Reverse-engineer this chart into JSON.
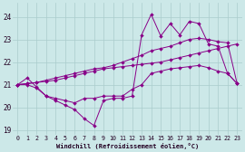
{
  "xlabel": "Windchill (Refroidissement éolien,°C)",
  "bg_color": "#cce8e8",
  "line_color": "#880088",
  "grid_color": "#aacccc",
  "xlim": [
    -0.5,
    23.5
  ],
  "ylim": [
    18.8,
    24.6
  ],
  "yticks": [
    19,
    20,
    21,
    22,
    23,
    24
  ],
  "xticks": [
    0,
    1,
    2,
    3,
    4,
    5,
    6,
    7,
    8,
    9,
    10,
    11,
    12,
    13,
    14,
    15,
    16,
    17,
    18,
    19,
    20,
    21,
    22,
    23
  ],
  "series": [
    {
      "x": [
        0,
        1,
        2,
        3,
        4,
        5,
        6,
        7,
        8,
        9,
        10,
        11,
        12,
        13,
        14,
        15,
        16,
        17,
        18,
        19,
        20,
        21,
        22,
        23
      ],
      "y": [
        21.0,
        21.05,
        21.1,
        21.15,
        21.2,
        21.3,
        21.4,
        21.5,
        21.6,
        21.7,
        21.75,
        21.8,
        21.85,
        21.9,
        21.95,
        22.0,
        22.1,
        22.2,
        22.3,
        22.4,
        22.5,
        22.6,
        22.7,
        22.8
      ]
    },
    {
      "x": [
        0,
        1,
        2,
        3,
        4,
        5,
        6,
        7,
        8,
        9,
        10,
        11,
        12,
        13,
        14,
        15,
        16,
        17,
        18,
        19,
        20,
        21,
        22,
        23
      ],
      "y": [
        21.0,
        21.05,
        21.1,
        21.2,
        21.3,
        21.4,
        21.5,
        21.6,
        21.7,
        21.75,
        21.85,
        22.0,
        22.15,
        22.3,
        22.5,
        22.6,
        22.7,
        22.85,
        23.0,
        23.05,
        23.0,
        22.9,
        22.85,
        21.05
      ]
    },
    {
      "x": [
        0,
        1,
        2,
        3,
        4,
        5,
        6,
        7,
        8,
        9,
        10,
        11,
        12,
        13,
        14,
        15,
        16,
        17,
        18,
        19,
        20,
        21,
        22,
        23
      ],
      "y": [
        21.0,
        21.0,
        20.85,
        20.5,
        20.4,
        20.3,
        20.2,
        20.4,
        20.4,
        20.5,
        20.5,
        20.5,
        20.8,
        21.0,
        21.5,
        21.6,
        21.7,
        21.75,
        21.8,
        21.85,
        21.75,
        21.6,
        21.5,
        21.05
      ]
    },
    {
      "x": [
        0,
        1,
        2,
        3,
        4,
        5,
        6,
        7,
        8,
        9,
        10,
        11,
        12,
        13,
        14,
        15,
        16,
        17,
        18,
        19,
        20,
        21,
        22,
        23
      ],
      "y": [
        21.0,
        21.3,
        20.9,
        20.5,
        20.3,
        20.1,
        19.9,
        19.5,
        19.2,
        20.3,
        20.4,
        20.4,
        20.5,
        23.2,
        24.1,
        23.15,
        23.7,
        23.2,
        23.8,
        23.7,
        22.8,
        22.7,
        21.5,
        21.05
      ]
    }
  ]
}
